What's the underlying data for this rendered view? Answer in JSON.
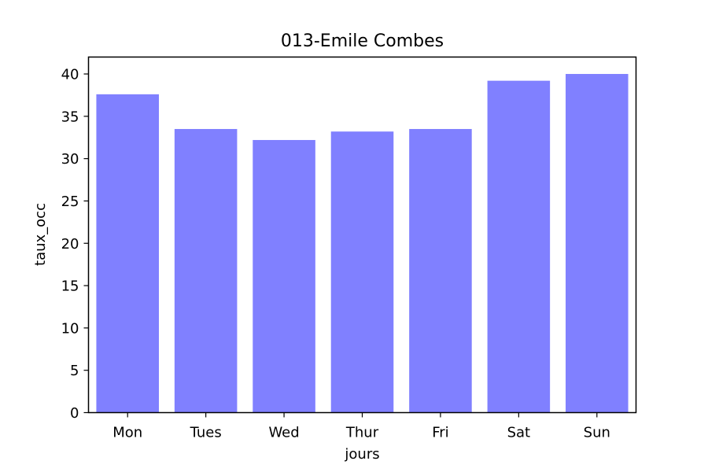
{
  "chart_data": {
    "type": "bar",
    "title": "013-Emile Combes",
    "xlabel": "jours",
    "ylabel": "taux_occ",
    "categories": [
      "Mon",
      "Tues",
      "Wed",
      "Thur",
      "Fri",
      "Sat",
      "Sun"
    ],
    "values": [
      37.6,
      33.5,
      32.2,
      33.2,
      33.5,
      39.2,
      40.0
    ],
    "ylim": [
      0,
      42
    ],
    "yticks": [
      0,
      5,
      10,
      15,
      20,
      25,
      30,
      35,
      40
    ],
    "bar_color": "#8080ff",
    "grid": false,
    "legend": "none"
  }
}
